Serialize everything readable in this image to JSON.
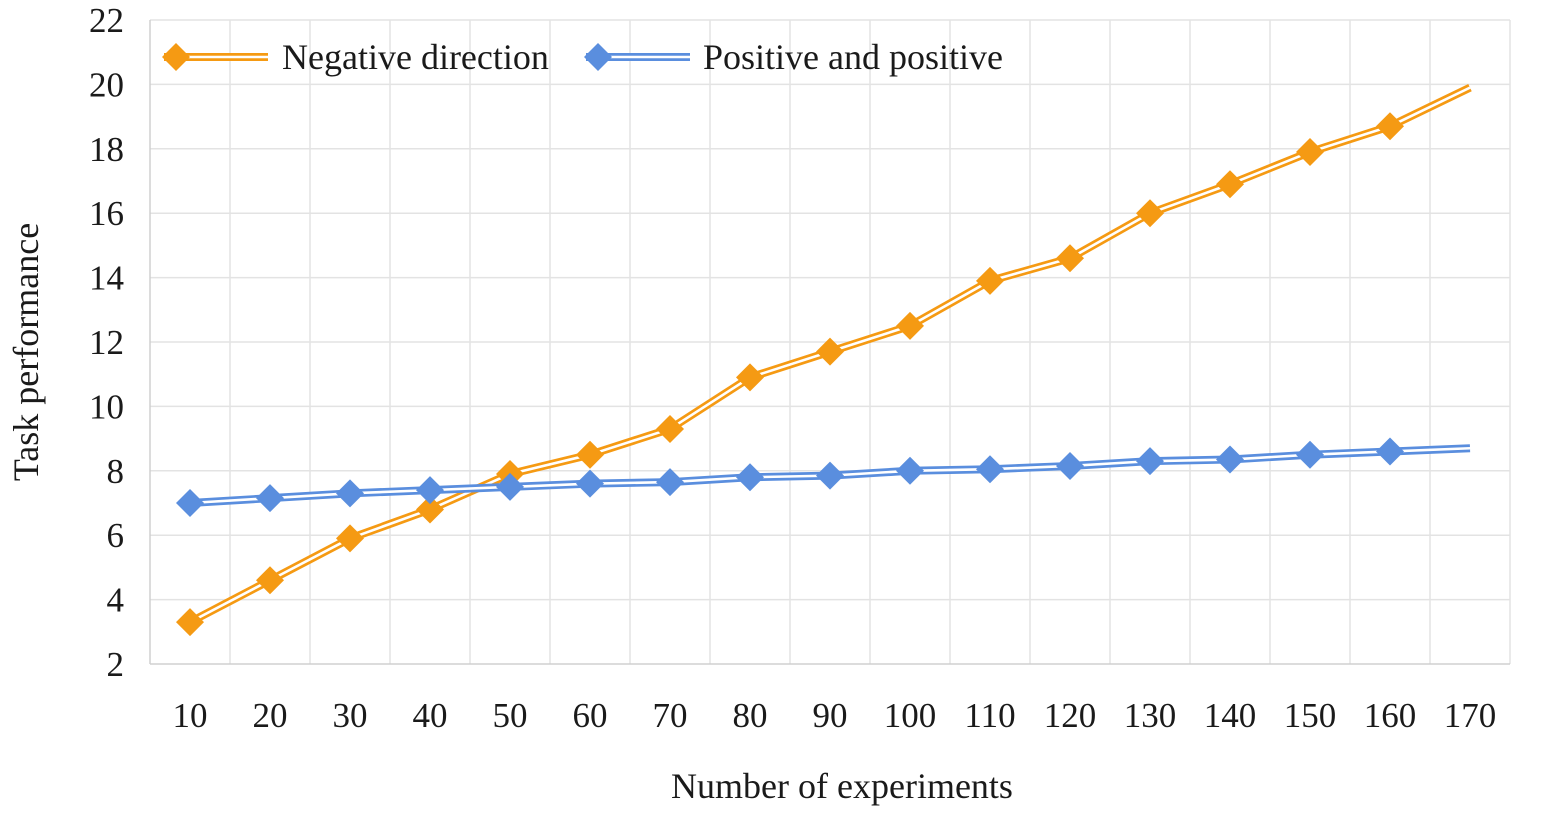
{
  "chart_data": {
    "type": "line",
    "title": "",
    "xlabel": "Number of experiments",
    "ylabel": "Task performance",
    "categories": [
      "10",
      "20",
      "30",
      "40",
      "50",
      "60",
      "70",
      "80",
      "90",
      "100",
      "110",
      "120",
      "130",
      "140",
      "150",
      "160",
      "170"
    ],
    "ylim": [
      2,
      22
    ],
    "yticks": [
      "2",
      "4",
      "6",
      "8",
      "10",
      "12",
      "14",
      "16",
      "18",
      "20",
      "22"
    ],
    "grid": true,
    "legend_position": "top-left",
    "series": [
      {
        "name": "Negative direction",
        "color": "#f59a13",
        "marker": "diamond",
        "values": [
          3.3,
          4.6,
          5.9,
          6.8,
          7.9,
          8.5,
          9.3,
          10.9,
          11.7,
          12.5,
          13.9,
          14.6,
          16.0,
          16.9,
          17.9,
          18.7,
          19.9
        ]
      },
      {
        "name": "Positive and positive",
        "color": "#5a8ede",
        "marker": "diamond",
        "values": [
          7.0,
          7.15,
          7.3,
          7.4,
          7.5,
          7.6,
          7.65,
          7.8,
          7.85,
          8.0,
          8.05,
          8.15,
          8.3,
          8.35,
          8.5,
          8.6,
          8.7
        ]
      }
    ]
  }
}
